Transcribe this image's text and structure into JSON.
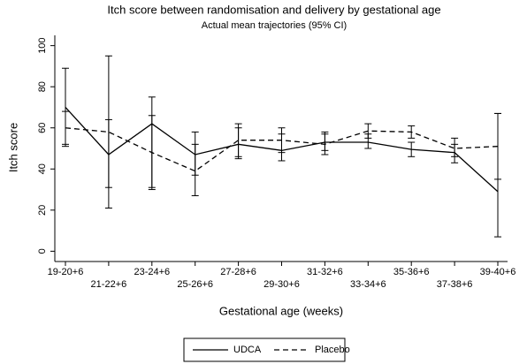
{
  "chart_data": {
    "type": "line",
    "title": "Itch score between randomisation and delivery by gestational age",
    "subtitle": "Actual mean trajectories (95% CI)",
    "x_label": "Gestational age (weeks)",
    "y_label": "Itch score",
    "categories": [
      "19-20+6",
      "21-22+6",
      "23-24+6",
      "25-26+6",
      "27-28+6",
      "29-30+6",
      "31-32+6",
      "33-34+6",
      "35-36+6",
      "37-38+6",
      "39-40+6"
    ],
    "series": [
      {
        "name": "UDCA",
        "color": "#000000",
        "dash": false,
        "values": [
          70,
          47,
          62,
          47,
          52,
          49,
          53,
          53,
          49.5,
          48,
          29
        ],
        "lower": [
          51,
          21,
          31,
          37,
          45,
          44,
          49,
          50,
          46,
          43,
          7
        ],
        "upper": [
          89,
          95,
          75,
          58,
          60,
          57,
          57,
          57,
          53,
          52,
          67
        ]
      },
      {
        "name": "Placebo",
        "color": "#000000",
        "dash": true,
        "values": [
          60,
          58,
          48,
          39,
          54,
          54,
          52,
          58.5,
          58,
          50,
          51
        ],
        "lower": [
          52,
          31,
          30,
          27,
          46,
          48,
          47,
          55,
          55,
          46,
          35
        ],
        "upper": [
          68,
          64,
          66,
          52,
          62,
          60,
          58,
          62,
          61,
          55,
          67
        ]
      }
    ],
    "ylim": [
      -5,
      105
    ],
    "yticks": [
      0,
      20,
      40,
      60,
      80,
      100
    ],
    "legend": "bottom"
  }
}
